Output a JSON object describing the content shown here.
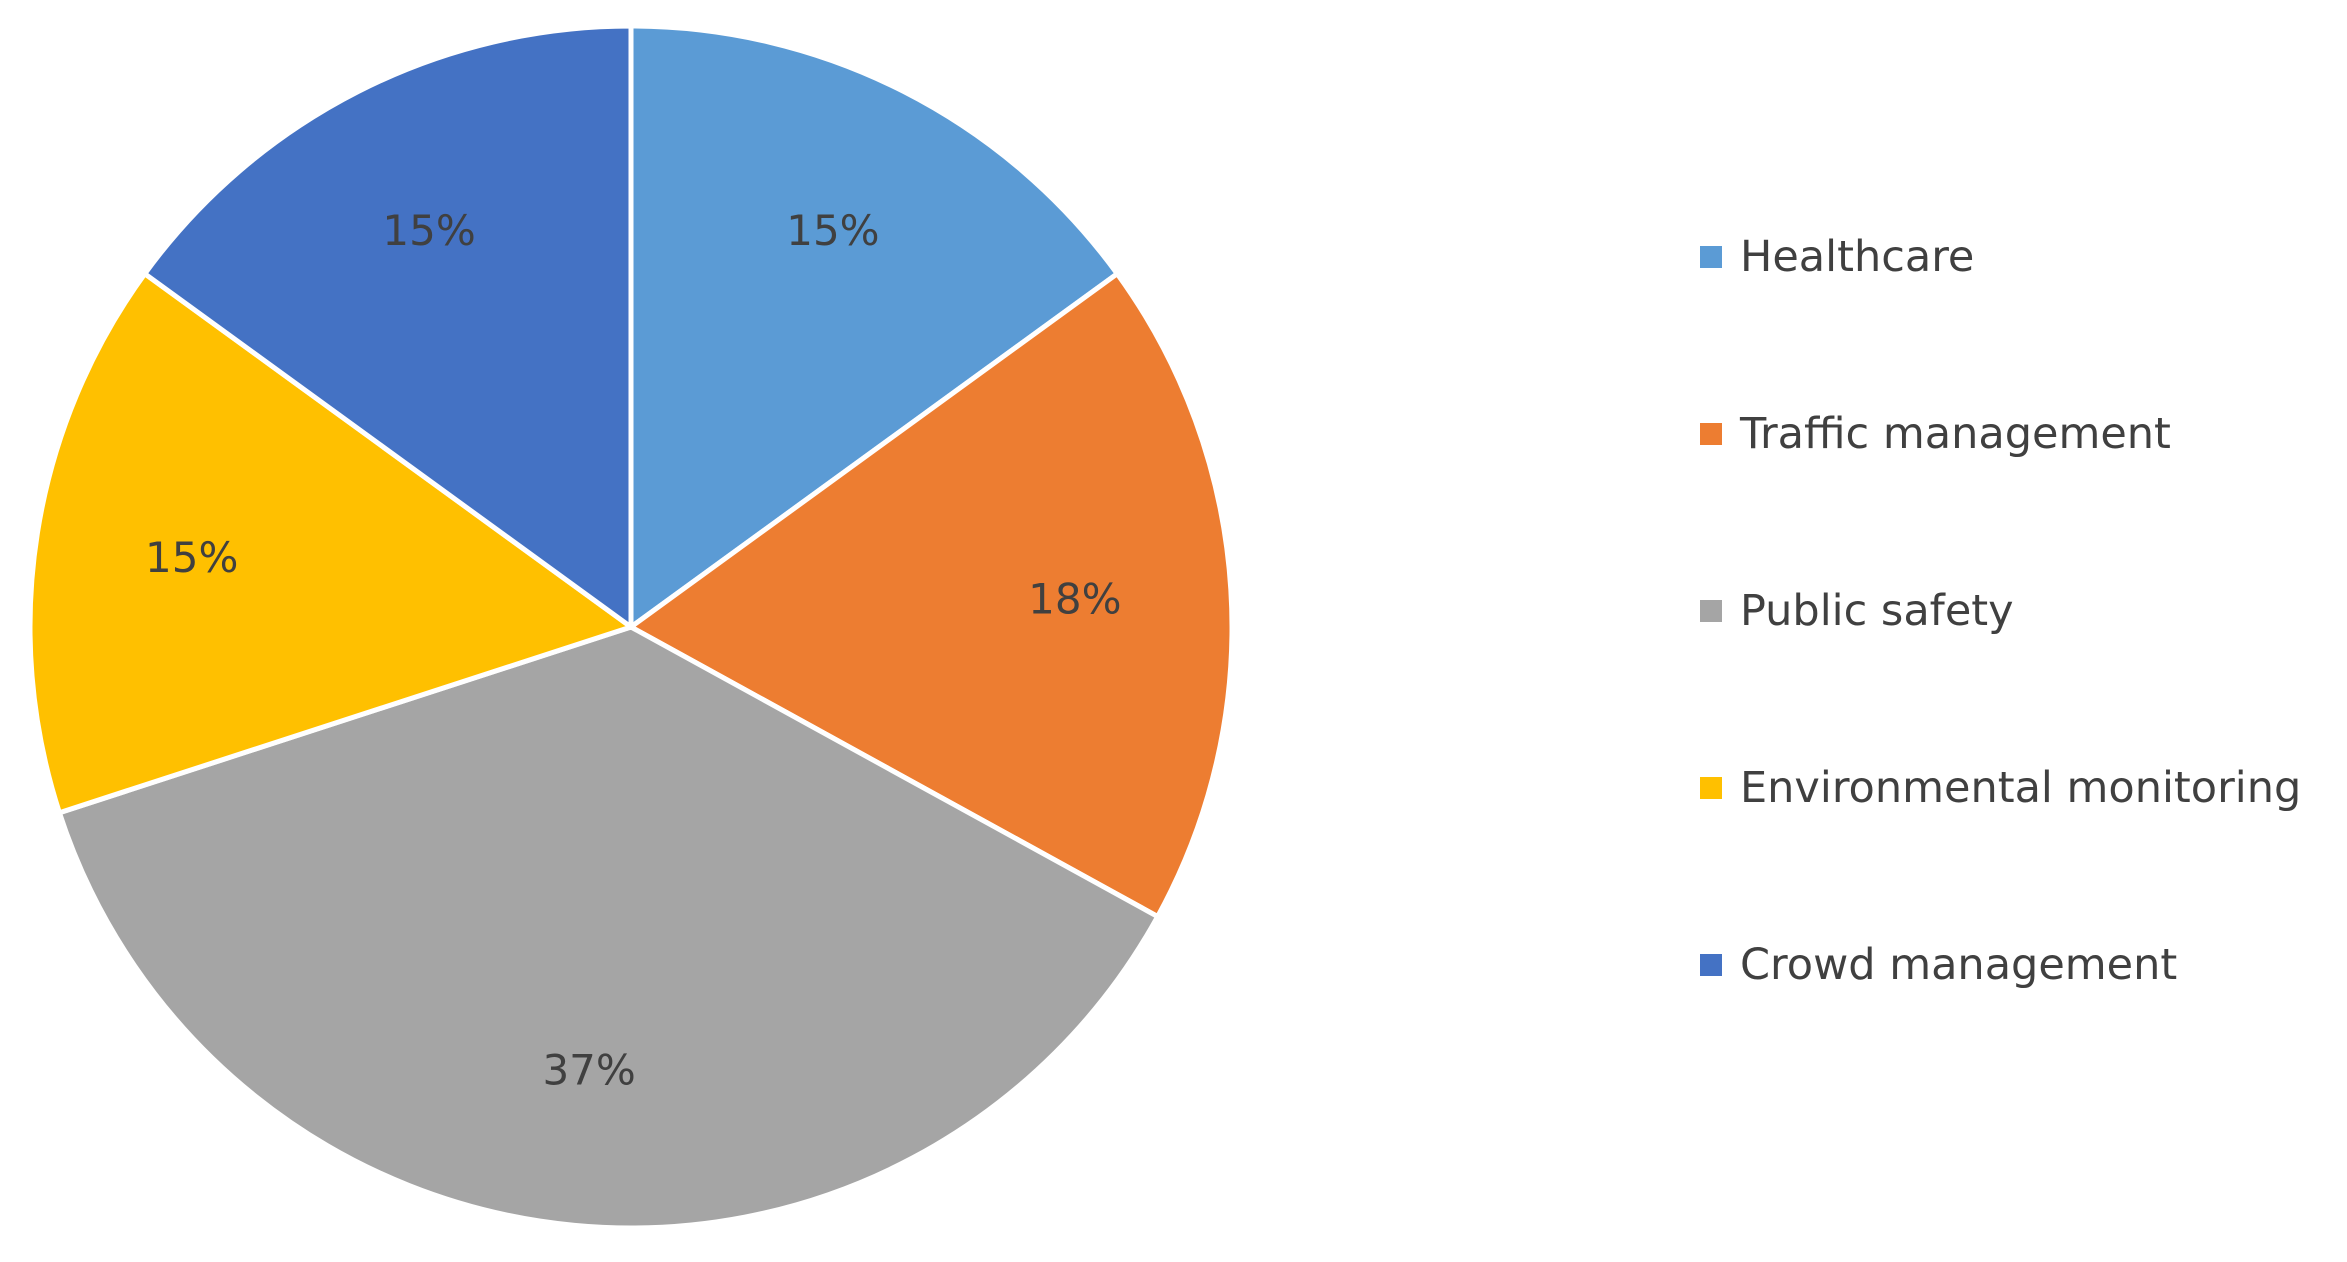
{
  "chart_data": {
    "type": "pie",
    "title": "",
    "categories": [
      "Healthcare",
      "Traffic management",
      "Public safety",
      "Environmental monitoring",
      "Crowd management"
    ],
    "values": [
      15,
      18,
      37,
      15,
      15
    ],
    "labels": [
      "15%",
      "18%",
      "37%",
      "15%",
      "15%"
    ],
    "colors": [
      "#5B9BD5",
      "#ED7D31",
      "#A5A5A5",
      "#FFC000",
      "#4472C4"
    ],
    "start_angle_deg": 0,
    "direction": "clockwise",
    "legend_position": "right"
  }
}
